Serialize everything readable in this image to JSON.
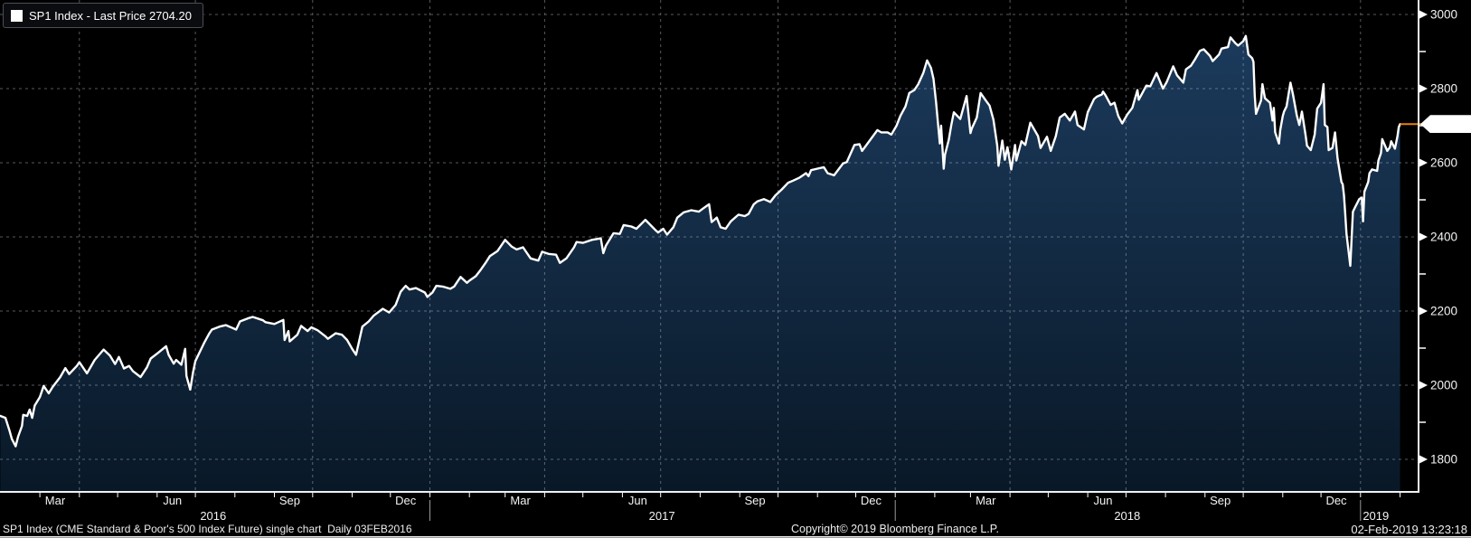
{
  "legend": {
    "label": "SP1 Index - Last Price 2704.20"
  },
  "last_price": {
    "value": "2704.20"
  },
  "footer": {
    "description": "SP1 Index (CME Standard & Poor's 500 Index Future) single chart  Daily 03FEB2016",
    "copyright": "Copyright© 2019 Bloomberg Finance L.P.",
    "timestamp": "02-Feb-2019 13:23:18"
  },
  "chart_data": {
    "type": "area",
    "title": "SP1 Index - Last Price",
    "series_name": "SP1 Index",
    "x_unit": "days since 03FEB2016",
    "x_domain_days": [
      0,
      1108
    ],
    "ylim_visible": [
      1712,
      3039
    ],
    "y_ticks_major": [
      1800,
      2000,
      2200,
      2400,
      2600,
      2800,
      3000
    ],
    "y_ticks_minor": [
      1900,
      2100,
      2300,
      2500,
      2700,
      2900
    ],
    "grid": "dashed",
    "legend_position": "top-left",
    "x_quarter_gridline_days": [
      58,
      149,
      241,
      333,
      423,
      514,
      606,
      698,
      788,
      879,
      971,
      1063
    ],
    "x_month_tick_days": [
      27,
      58,
      88,
      119,
      149,
      180,
      211,
      241,
      272,
      302,
      333,
      364,
      392,
      423,
      453,
      484,
      514,
      545,
      576,
      606,
      637,
      667,
      698,
      729,
      757,
      788,
      818,
      849,
      879,
      910,
      941,
      971,
      1002,
      1032,
      1063,
      1094
    ],
    "x_year_divider_days": [
      333,
      698,
      1063
    ],
    "x_quarter_labels": [
      {
        "label": "Mar",
        "day": 39
      },
      {
        "label": "Jun",
        "day": 131
      },
      {
        "label": "Sep",
        "day": 223
      },
      {
        "label": "Dec",
        "day": 314
      },
      {
        "label": "Mar",
        "day": 404
      },
      {
        "label": "Jun",
        "day": 496
      },
      {
        "label": "Sep",
        "day": 588
      },
      {
        "label": "Dec",
        "day": 679
      },
      {
        "label": "Mar",
        "day": 769
      },
      {
        "label": "Jun",
        "day": 861
      },
      {
        "label": "Sep",
        "day": 953
      },
      {
        "label": "Dec",
        "day": 1044
      }
    ],
    "x_year_labels": [
      {
        "label": "2016",
        "day": 163
      },
      {
        "label": "2017",
        "day": 515
      },
      {
        "label": "2018",
        "day": 880
      },
      {
        "label": "2019",
        "day": 1075
      }
    ],
    "last_point": [
      1094,
      2704.2
    ],
    "colors": {
      "line": "#ffffff",
      "area_top": "#1d3d60",
      "area_bottom": "#091827",
      "grid": "#a9b3be",
      "axis": "#f0f1f2",
      "last_price_line": "#e8820e",
      "year_divider": "#9a9a9a",
      "background": "#000000"
    },
    "points": [
      [
        -4,
        1917
      ],
      [
        0,
        1912
      ],
      [
        3,
        1880
      ],
      [
        5,
        1855
      ],
      [
        8,
        1835
      ],
      [
        10,
        1862
      ],
      [
        13,
        1890
      ],
      [
        14,
        1920
      ],
      [
        17,
        1917
      ],
      [
        19,
        1934
      ],
      [
        21,
        1912
      ],
      [
        23,
        1945
      ],
      [
        27,
        1968
      ],
      [
        30,
        1998
      ],
      [
        34,
        1978
      ],
      [
        37,
        1995
      ],
      [
        43,
        2022
      ],
      [
        47,
        2046
      ],
      [
        50,
        2030
      ],
      [
        56,
        2052
      ],
      [
        58,
        2062
      ],
      [
        62,
        2042
      ],
      [
        64,
        2032
      ],
      [
        70,
        2068
      ],
      [
        75,
        2088
      ],
      [
        77,
        2096
      ],
      [
        82,
        2080
      ],
      [
        86,
        2057
      ],
      [
        89,
        2076
      ],
      [
        93,
        2045
      ],
      [
        97,
        2052
      ],
      [
        100,
        2038
      ],
      [
        106,
        2022
      ],
      [
        111,
        2048
      ],
      [
        114,
        2072
      ],
      [
        120,
        2088
      ],
      [
        126,
        2105
      ],
      [
        128,
        2082
      ],
      [
        132,
        2058
      ],
      [
        134,
        2068
      ],
      [
        138,
        2055
      ],
      [
        141,
        2098
      ],
      [
        142,
        2025
      ],
      [
        145,
        1988
      ],
      [
        147,
        2032
      ],
      [
        149,
        2065
      ],
      [
        156,
        2115
      ],
      [
        160,
        2140
      ],
      [
        162,
        2150
      ],
      [
        168,
        2158
      ],
      [
        173,
        2162
      ],
      [
        181,
        2150
      ],
      [
        184,
        2172
      ],
      [
        190,
        2180
      ],
      [
        194,
        2184
      ],
      [
        202,
        2175
      ],
      [
        204,
        2170
      ],
      [
        211,
        2165
      ],
      [
        218,
        2176
      ],
      [
        219,
        2122
      ],
      [
        222,
        2146
      ],
      [
        223,
        2118
      ],
      [
        229,
        2136
      ],
      [
        232,
        2160
      ],
      [
        237,
        2146
      ],
      [
        240,
        2156
      ],
      [
        245,
        2148
      ],
      [
        251,
        2132
      ],
      [
        253,
        2125
      ],
      [
        259,
        2140
      ],
      [
        264,
        2136
      ],
      [
        268,
        2122
      ],
      [
        272,
        2098
      ],
      [
        275,
        2082
      ],
      [
        280,
        2158
      ],
      [
        285,
        2172
      ],
      [
        289,
        2188
      ],
      [
        296,
        2206
      ],
      [
        301,
        2196
      ],
      [
        306,
        2216
      ],
      [
        310,
        2252
      ],
      [
        314,
        2268
      ],
      [
        317,
        2258
      ],
      [
        322,
        2262
      ],
      [
        329,
        2250
      ],
      [
        331,
        2238
      ],
      [
        335,
        2250
      ],
      [
        338,
        2268
      ],
      [
        343,
        2266
      ],
      [
        349,
        2260
      ],
      [
        352,
        2266
      ],
      [
        357,
        2292
      ],
      [
        362,
        2276
      ],
      [
        364,
        2282
      ],
      [
        369,
        2294
      ],
      [
        373,
        2312
      ],
      [
        377,
        2332
      ],
      [
        380,
        2348
      ],
      [
        386,
        2362
      ],
      [
        392,
        2392
      ],
      [
        397,
        2374
      ],
      [
        401,
        2366
      ],
      [
        406,
        2372
      ],
      [
        412,
        2342
      ],
      [
        418,
        2336
      ],
      [
        421,
        2360
      ],
      [
        426,
        2354
      ],
      [
        432,
        2352
      ],
      [
        435,
        2330
      ],
      [
        440,
        2342
      ],
      [
        446,
        2372
      ],
      [
        448,
        2386
      ],
      [
        453,
        2384
      ],
      [
        460,
        2392
      ],
      [
        467,
        2396
      ],
      [
        469,
        2356
      ],
      [
        471,
        2376
      ],
      [
        477,
        2410
      ],
      [
        482,
        2408
      ],
      [
        485,
        2432
      ],
      [
        491,
        2428
      ],
      [
        495,
        2422
      ],
      [
        502,
        2446
      ],
      [
        510,
        2418
      ],
      [
        512,
        2412
      ],
      [
        516,
        2422
      ],
      [
        519,
        2406
      ],
      [
        524,
        2426
      ],
      [
        527,
        2452
      ],
      [
        532,
        2466
      ],
      [
        538,
        2472
      ],
      [
        544,
        2468
      ],
      [
        547,
        2476
      ],
      [
        552,
        2488
      ],
      [
        554,
        2440
      ],
      [
        558,
        2452
      ],
      [
        561,
        2426
      ],
      [
        565,
        2422
      ],
      [
        569,
        2442
      ],
      [
        575,
        2460
      ],
      [
        580,
        2456
      ],
      [
        583,
        2462
      ],
      [
        587,
        2488
      ],
      [
        590,
        2496
      ],
      [
        595,
        2502
      ],
      [
        600,
        2494
      ],
      [
        604,
        2512
      ],
      [
        609,
        2528
      ],
      [
        614,
        2546
      ],
      [
        618,
        2552
      ],
      [
        623,
        2560
      ],
      [
        628,
        2572
      ],
      [
        630,
        2564
      ],
      [
        632,
        2580
      ],
      [
        637,
        2584
      ],
      [
        642,
        2588
      ],
      [
        645,
        2572
      ],
      [
        650,
        2566
      ],
      [
        657,
        2598
      ],
      [
        660,
        2602
      ],
      [
        666,
        2648
      ],
      [
        670,
        2650
      ],
      [
        672,
        2632
      ],
      [
        678,
        2660
      ],
      [
        684,
        2688
      ],
      [
        687,
        2682
      ],
      [
        692,
        2682
      ],
      [
        695,
        2676
      ],
      [
        699,
        2700
      ],
      [
        702,
        2726
      ],
      [
        706,
        2752
      ],
      [
        709,
        2788
      ],
      [
        713,
        2796
      ],
      [
        716,
        2812
      ],
      [
        720,
        2842
      ],
      [
        723,
        2876
      ],
      [
        726,
        2856
      ],
      [
        728,
        2826
      ],
      [
        730,
        2764
      ],
      [
        733,
        2652
      ],
      [
        734,
        2700
      ],
      [
        736,
        2584
      ],
      [
        737,
        2622
      ],
      [
        740,
        2662
      ],
      [
        742,
        2702
      ],
      [
        744,
        2736
      ],
      [
        749,
        2718
      ],
      [
        754,
        2780
      ],
      [
        757,
        2680
      ],
      [
        758,
        2692
      ],
      [
        762,
        2722
      ],
      [
        765,
        2788
      ],
      [
        769,
        2768
      ],
      [
        772,
        2754
      ],
      [
        775,
        2716
      ],
      [
        778,
        2646
      ],
      [
        779,
        2592
      ],
      [
        782,
        2660
      ],
      [
        784,
        2608
      ],
      [
        786,
        2642
      ],
      [
        789,
        2582
      ],
      [
        792,
        2648
      ],
      [
        793,
        2606
      ],
      [
        797,
        2658
      ],
      [
        800,
        2648
      ],
      [
        804,
        2708
      ],
      [
        810,
        2672
      ],
      [
        812,
        2640
      ],
      [
        817,
        2670
      ],
      [
        820,
        2632
      ],
      [
        824,
        2672
      ],
      [
        827,
        2722
      ],
      [
        831,
        2732
      ],
      [
        835,
        2714
      ],
      [
        839,
        2738
      ],
      [
        841,
        2702
      ],
      [
        846,
        2690
      ],
      [
        849,
        2736
      ],
      [
        854,
        2772
      ],
      [
        856,
        2778
      ],
      [
        860,
        2784
      ],
      [
        861,
        2792
      ],
      [
        863,
        2782
      ],
      [
        867,
        2756
      ],
      [
        870,
        2762
      ],
      [
        873,
        2726
      ],
      [
        876,
        2706
      ],
      [
        880,
        2730
      ],
      [
        884,
        2748
      ],
      [
        888,
        2796
      ],
      [
        889,
        2770
      ],
      [
        895,
        2808
      ],
      [
        898,
        2806
      ],
      [
        903,
        2842
      ],
      [
        908,
        2800
      ],
      [
        911,
        2818
      ],
      [
        916,
        2860
      ],
      [
        919,
        2836
      ],
      [
        924,
        2816
      ],
      [
        926,
        2852
      ],
      [
        930,
        2862
      ],
      [
        933,
        2878
      ],
      [
        937,
        2902
      ],
      [
        940,
        2906
      ],
      [
        945,
        2888
      ],
      [
        947,
        2874
      ],
      [
        952,
        2892
      ],
      [
        954,
        2908
      ],
      [
        959,
        2912
      ],
      [
        961,
        2938
      ],
      [
        965,
        2922
      ],
      [
        967,
        2916
      ],
      [
        971,
        2928
      ],
      [
        973,
        2942
      ],
      [
        975,
        2892
      ],
      [
        978,
        2882
      ],
      [
        979,
        2872
      ],
      [
        980,
        2782
      ],
      [
        981,
        2732
      ],
      [
        985,
        2768
      ],
      [
        986,
        2812
      ],
      [
        988,
        2774
      ],
      [
        992,
        2762
      ],
      [
        994,
        2714
      ],
      [
        995,
        2748
      ],
      [
        996,
        2682
      ],
      [
        999,
        2652
      ],
      [
        1000,
        2688
      ],
      [
        1002,
        2726
      ],
      [
        1003,
        2738
      ],
      [
        1005,
        2752
      ],
      [
        1008,
        2816
      ],
      [
        1010,
        2784
      ],
      [
        1013,
        2728
      ],
      [
        1015,
        2702
      ],
      [
        1017,
        2738
      ],
      [
        1020,
        2672
      ],
      [
        1021,
        2646
      ],
      [
        1024,
        2634
      ],
      [
        1027,
        2676
      ],
      [
        1029,
        2746
      ],
      [
        1032,
        2762
      ],
      [
        1034,
        2812
      ],
      [
        1035,
        2702
      ],
      [
        1037,
        2696
      ],
      [
        1038,
        2634
      ],
      [
        1041,
        2640
      ],
      [
        1043,
        2682
      ],
      [
        1045,
        2612
      ],
      [
        1048,
        2548
      ],
      [
        1049,
        2542
      ],
      [
        1050,
        2512
      ],
      [
        1051,
        2462
      ],
      [
        1052,
        2408
      ],
      [
        1055,
        2322
      ],
      [
        1057,
        2468
      ],
      [
        1059,
        2482
      ],
      [
        1062,
        2502
      ],
      [
        1064,
        2506
      ],
      [
        1065,
        2442
      ],
      [
        1066,
        2522
      ],
      [
        1069,
        2548
      ],
      [
        1070,
        2572
      ],
      [
        1072,
        2582
      ],
      [
        1076,
        2578
      ],
      [
        1077,
        2606
      ],
      [
        1079,
        2626
      ],
      [
        1080,
        2664
      ],
      [
        1084,
        2632
      ],
      [
        1086,
        2642
      ],
      [
        1087,
        2658
      ],
      [
        1090,
        2638
      ],
      [
        1092,
        2672
      ],
      [
        1093,
        2696
      ],
      [
        1094,
        2704.2
      ]
    ]
  }
}
